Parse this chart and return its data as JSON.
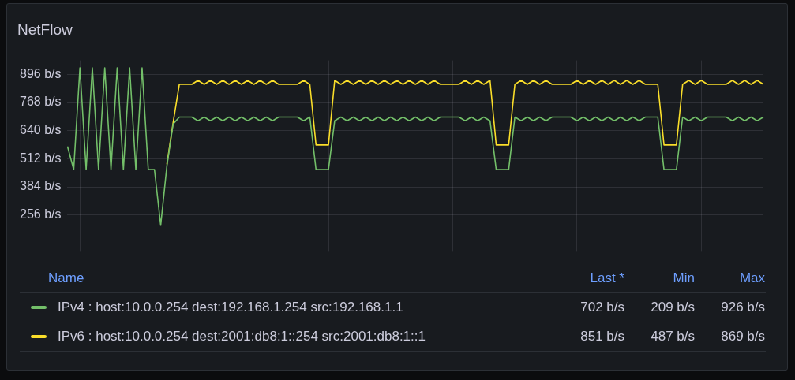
{
  "chart_data": {
    "type": "line",
    "title": "NetFlow",
    "categories": [
      null,
      null,
      null,
      null,
      null,
      null,
      null,
      null,
      null,
      null,
      null,
      null,
      null,
      null,
      null,
      null,
      null,
      null,
      null,
      null,
      null,
      null,
      null,
      null,
      null,
      null,
      null,
      null,
      null,
      null,
      null,
      null,
      null,
      null,
      null,
      null,
      null,
      null,
      null,
      null,
      null,
      null,
      null,
      null,
      null,
      null,
      null,
      null,
      null,
      null,
      null,
      null,
      null,
      null,
      null,
      null,
      null,
      null,
      null,
      null,
      null,
      null,
      null,
      null,
      null,
      null,
      null,
      null,
      null,
      null,
      null,
      null,
      null,
      null,
      null,
      null,
      null,
      null,
      null,
      null,
      null,
      null,
      null,
      null,
      null,
      null,
      null,
      null,
      null,
      null,
      null,
      null,
      null,
      null,
      null,
      null,
      null,
      null,
      null,
      null,
      null,
      null,
      null,
      null,
      null,
      null,
      null,
      null,
      null,
      null,
      null,
      null,
      null
    ],
    "series": [
      {
        "name": "IPv4 : host:10.0.0.254 dest:192.168.1.254 src:192.168.1.1",
        "color": "#73bf69",
        "values": [
          568,
          463,
          926,
          463,
          926,
          463,
          926,
          463,
          926,
          463,
          926,
          463,
          926,
          463,
          463,
          209,
          480,
          670,
          702,
          702,
          702,
          685,
          702,
          685,
          702,
          685,
          702,
          685,
          702,
          685,
          702,
          685,
          702,
          685,
          702,
          702,
          702,
          702,
          685,
          702,
          463,
          463,
          463,
          685,
          702,
          685,
          702,
          685,
          702,
          685,
          702,
          685,
          702,
          685,
          702,
          685,
          702,
          685,
          702,
          685,
          702,
          702,
          702,
          702,
          685,
          702,
          685,
          702,
          685,
          463,
          463,
          463,
          702,
          685,
          702,
          685,
          702,
          685,
          702,
          702,
          702,
          702,
          685,
          702,
          685,
          702,
          685,
          702,
          685,
          702,
          685,
          702,
          685,
          702,
          702,
          702,
          463,
          463,
          463,
          702,
          685,
          702,
          685,
          702,
          702,
          702,
          702,
          685,
          702,
          685,
          702,
          685,
          702
        ]
      },
      {
        "name": "IPv6 : host:10.0.0.254 dest:2001:db8:1::254 src:2001:db8:1::1",
        "color": "#fade2a",
        "values": [
          null,
          null,
          null,
          null,
          null,
          null,
          null,
          null,
          null,
          null,
          null,
          null,
          null,
          null,
          null,
          null,
          487,
          676,
          851,
          851,
          851,
          869,
          851,
          869,
          851,
          869,
          851,
          869,
          851,
          869,
          851,
          869,
          851,
          869,
          851,
          851,
          851,
          851,
          869,
          851,
          575,
          575,
          575,
          869,
          851,
          869,
          851,
          869,
          851,
          869,
          851,
          869,
          851,
          869,
          851,
          869,
          851,
          869,
          851,
          869,
          851,
          851,
          851,
          851,
          869,
          851,
          869,
          851,
          869,
          575,
          575,
          575,
          851,
          869,
          851,
          869,
          851,
          869,
          851,
          851,
          851,
          851,
          869,
          851,
          869,
          851,
          869,
          851,
          869,
          851,
          869,
          851,
          869,
          851,
          851,
          851,
          575,
          575,
          575,
          851,
          869,
          851,
          869,
          851,
          851,
          851,
          851,
          869,
          851,
          869,
          851,
          869,
          851
        ]
      }
    ],
    "ylim": [
      110,
      960
    ],
    "yticks": [
      {
        "value": 256,
        "label": "256 b/s"
      },
      {
        "value": 384,
        "label": "384 b/s"
      },
      {
        "value": 512,
        "label": "512 b/s"
      },
      {
        "value": 640,
        "label": "640 b/s"
      },
      {
        "value": 768,
        "label": "768 b/s"
      },
      {
        "value": 896,
        "label": "896 b/s"
      }
    ],
    "tick_labels": "y",
    "grid": true,
    "marker": "none",
    "legend": "bottom",
    "annotations": [
      "Name",
      "Last *",
      "Min",
      "Max",
      "702 b/s",
      "209 b/s",
      "926 b/s",
      "851 b/s",
      "487 b/s",
      "869 b/s"
    ]
  }
}
